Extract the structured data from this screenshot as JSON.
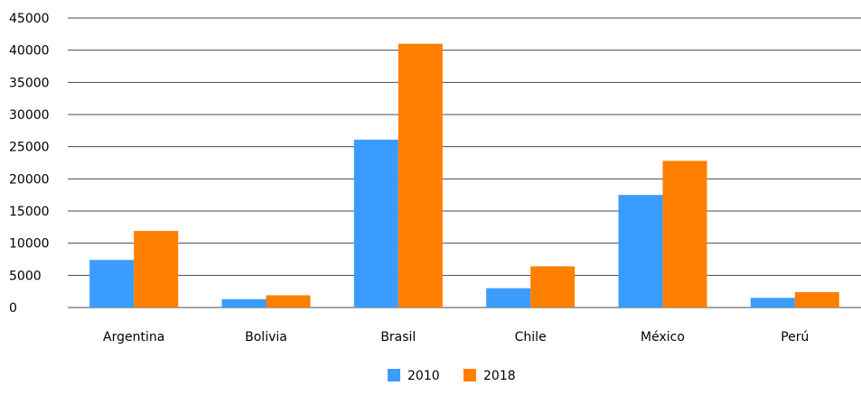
{
  "chart_data": {
    "type": "bar",
    "title": "",
    "xlabel": "",
    "ylabel": "",
    "categories": [
      "Argentina",
      "Bolivia",
      "Brasil",
      "Chile",
      "México",
      "Perú"
    ],
    "series": [
      {
        "name": "2010",
        "color": "#3a9cff",
        "values": [
          7400,
          1300,
          26100,
          3000,
          17500,
          1500
        ]
      },
      {
        "name": "2018",
        "color": "#ff7f00",
        "values": [
          11900,
          1900,
          41000,
          6400,
          22800,
          2400
        ]
      }
    ],
    "ylim": [
      0,
      45000
    ],
    "yticks": [
      "0",
      "5000",
      "10000",
      "15000",
      "20000",
      "25000",
      "30000",
      "35000",
      "40000",
      "45000"
    ],
    "grid": true,
    "legend_position": "bottom-center"
  }
}
